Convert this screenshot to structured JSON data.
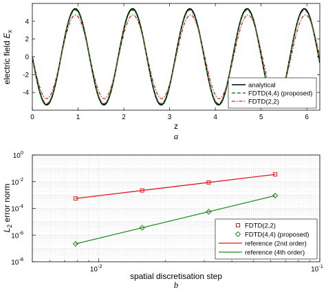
{
  "chart_data": [
    {
      "type": "line",
      "panel_label": "a",
      "xlabel": "z",
      "ylabel_main": "electric field ",
      "ylabel_var": "E",
      "ylabel_sub": "x",
      "xlim": [
        0,
        6.283
      ],
      "ylim": [
        -6,
        6
      ],
      "xticks": [
        0,
        1,
        2,
        3,
        4,
        5,
        6
      ],
      "xtick_labels": [
        "0",
        "1",
        "2",
        "3",
        "4",
        "5",
        "6"
      ],
      "yticks": [
        -4,
        -2,
        0,
        2,
        4
      ],
      "ytick_labels": [
        "-4",
        "-2",
        "0",
        "2",
        "4"
      ],
      "grid": false,
      "legend_position": "bottom-right",
      "series": [
        {
          "name": "analytical",
          "formula": "-A*sin(k*z)",
          "amplitude": 5.4,
          "k": 5.02,
          "color": "#000000",
          "style": "solid"
        },
        {
          "name": "FDTD(4,4) (proposed)",
          "formula": "-A*sin(k*z)",
          "amplitude": 5.25,
          "k": 5.02,
          "color": "#1a8a1a",
          "style": "dashed"
        },
        {
          "name": "FDTD(2,2)",
          "formula": "-A*sin(k*z)",
          "amplitude": 4.7,
          "k": 5.0,
          "color": "#e0141c",
          "style": "dashdot"
        }
      ]
    },
    {
      "type": "line",
      "panel_label": "b",
      "xlabel": "spatial discretisation step",
      "ylabel_var": "L",
      "ylabel_sub": "2",
      "ylabel_main": " error norm",
      "xscale": "log",
      "yscale": "log",
      "xlim": [
        0.005,
        0.1
      ],
      "ylim": [
        1e-08,
        1
      ],
      "xticks": [
        0.01,
        0.1
      ],
      "xtick_bases": [
        "10",
        "10"
      ],
      "xtick_exps": [
        "-2",
        "-1"
      ],
      "yticks": [
        1e-08,
        1e-06,
        0.0001,
        0.01,
        1
      ],
      "ytick_bases": [
        "10",
        "10",
        "10",
        "10",
        "10"
      ],
      "ytick_exps": [
        "-8",
        "-6",
        "-4",
        "-2",
        "0"
      ],
      "grid": true,
      "legend_position": "bottom-right",
      "series": [
        {
          "name": "FDTD(2,2)",
          "marker": "square",
          "color": "#e0141c",
          "x": [
            0.00785,
            0.0157,
            0.0314,
            0.0628
          ],
          "y": [
            0.00055,
            0.0022,
            0.0088,
            0.035
          ]
        },
        {
          "name": "FDTD(4,4) (proposed)",
          "marker": "diamond",
          "color": "#1a8a1a",
          "x": [
            0.00785,
            0.0157,
            0.0314,
            0.0628
          ],
          "y": [
            2.2e-07,
            3.5e-06,
            5.6e-05,
            0.0009
          ]
        },
        {
          "name": "reference (2nd order)",
          "color": "#e0141c",
          "x": [
            0.00785,
            0.0628
          ],
          "y": [
            0.00055,
            0.035
          ]
        },
        {
          "name": "reference (4th order)",
          "color": "#1a8a1a",
          "x": [
            0.00785,
            0.0628
          ],
          "y": [
            2.2e-07,
            0.0009
          ]
        }
      ]
    }
  ]
}
